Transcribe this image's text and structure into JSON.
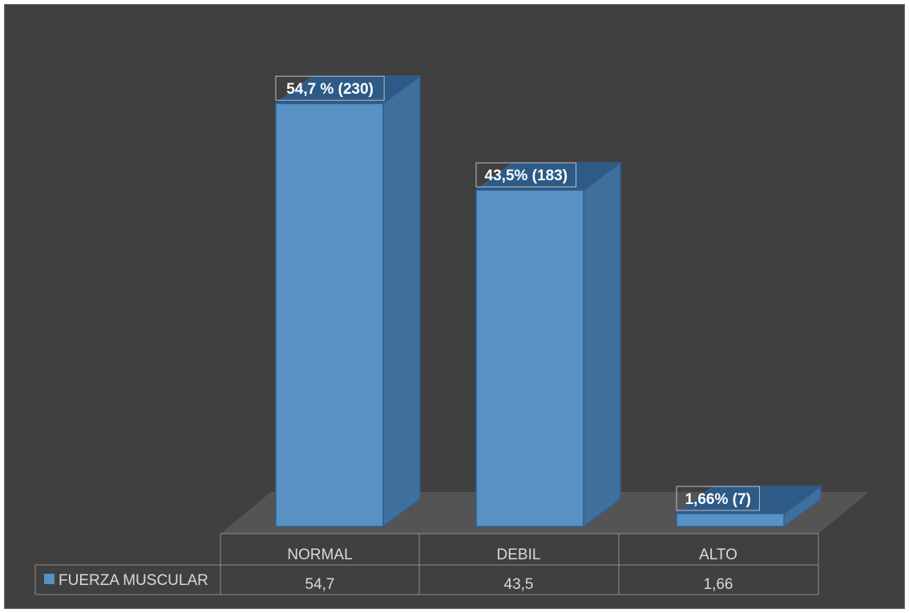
{
  "chart_data": {
    "type": "bar",
    "categories": [
      "NORMAL",
      "DEBIL",
      "ALTO"
    ],
    "series": [
      {
        "name": "FUERZA MUSCULAR",
        "values": [
          54.7,
          43.5,
          1.66
        ]
      }
    ],
    "data_labels": [
      "54,7 % (230)",
      "43,5% (183)",
      "1,66% (7)"
    ],
    "table_values": [
      "54,7",
      "43,5",
      "1,66"
    ],
    "ylim": [
      0,
      60
    ],
    "grid": false,
    "legend": "data-table",
    "colors": {
      "background": "#404040",
      "bar_front": "#5891c4",
      "bar_side": "#3f6f9d",
      "bar_top": "#2d5a86",
      "floor": "#555454",
      "table_lines": "#8c8c8c",
      "text": "#d9d9d9"
    }
  }
}
